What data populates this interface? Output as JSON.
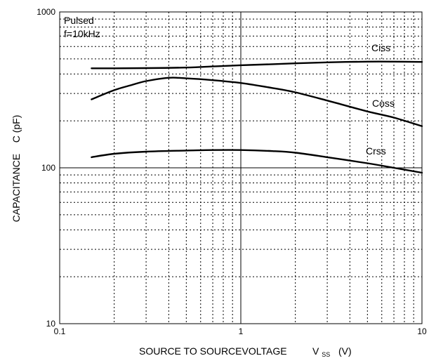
{
  "chart_data": {
    "type": "line",
    "xscale": "log",
    "yscale": "log",
    "xlim": [
      0.1,
      10
    ],
    "ylim": [
      10,
      1000
    ],
    "grid": true,
    "x_ticks": [
      "0.1",
      "1",
      "10"
    ],
    "y_ticks": [
      "10",
      "100",
      "1000"
    ],
    "xlabel": "SOURCE TO SOURCEVOLTAGE",
    "xlabel_symbol": "V",
    "xlabel_subscript": "SS",
    "xlabel_unit": "(V)",
    "ylabel": "CAPACITANCE    C (pF)",
    "annotations": [
      "Pulsed",
      "f=10kHz"
    ],
    "series": [
      {
        "name": "Ciss",
        "x": [
          0.15,
          0.2,
          0.3,
          0.5,
          0.7,
          1,
          1.5,
          2,
          3,
          5,
          7,
          10
        ],
        "y": [
          435,
          435,
          436,
          440,
          447,
          455,
          462,
          468,
          475,
          480,
          480,
          478
        ]
      },
      {
        "name": "Coss",
        "x": [
          0.15,
          0.2,
          0.25,
          0.3,
          0.4,
          0.5,
          0.7,
          1,
          1.5,
          2,
          3,
          5,
          7,
          10
        ],
        "y": [
          275,
          315,
          340,
          360,
          378,
          375,
          365,
          350,
          325,
          305,
          270,
          230,
          210,
          185
        ]
      },
      {
        "name": "Crss",
        "x": [
          0.15,
          0.2,
          0.3,
          0.5,
          0.7,
          1,
          1.5,
          2,
          3,
          5,
          7,
          10
        ],
        "y": [
          117,
          123,
          127,
          129,
          130,
          130,
          128,
          125,
          117,
          107,
          100,
          93
        ]
      }
    ]
  },
  "colors": {
    "line": "#000000",
    "grid": "#000000",
    "background": "#ffffff"
  }
}
